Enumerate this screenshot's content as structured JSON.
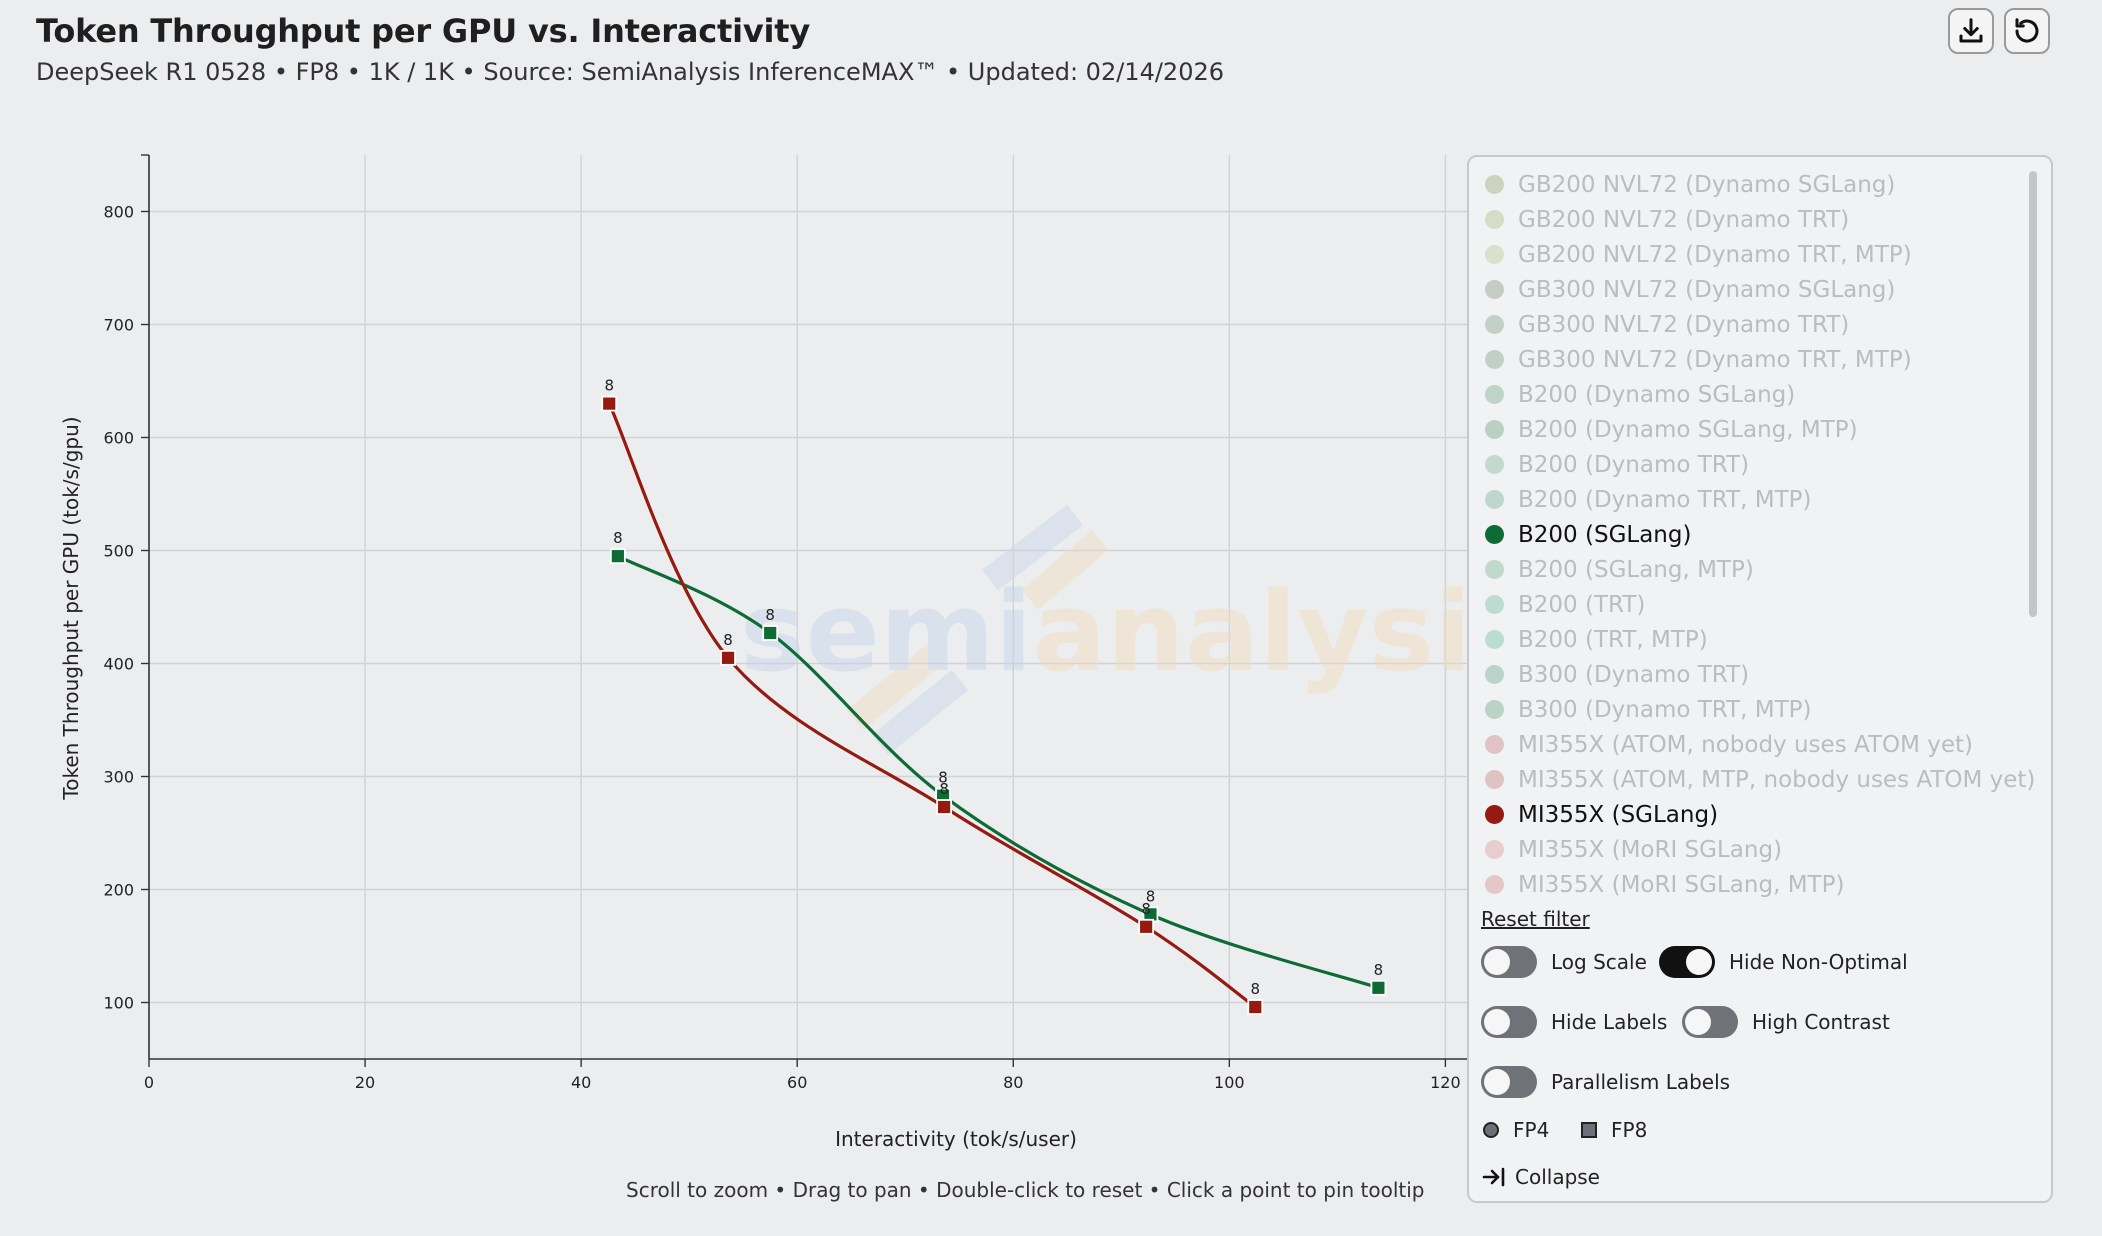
{
  "header": {
    "title": "Token Throughput per GPU vs. Interactivity",
    "subtitle": "DeepSeek R1 0528 • FP8 • 1K / 1K • Source: SemiAnalysis InferenceMAX™ • Updated: 02/14/2026"
  },
  "toolbar": {
    "download_icon": "download-icon",
    "reset_icon": "refresh-icon"
  },
  "watermark": {
    "part1": "semi",
    "part2": "analysis"
  },
  "hint": "Scroll to zoom • Drag to pan • Double-click to reset • Click a point to pin tooltip",
  "chart_data": {
    "type": "line",
    "xlabel": "Interactivity (tok/s/user)",
    "ylabel": "Token Throughput per GPU (tok/s/gpu)",
    "xlim": [
      0,
      122
    ],
    "ylim": [
      50,
      850
    ],
    "xticks": [
      "0",
      "20",
      "40",
      "60",
      "80",
      "100",
      "120"
    ],
    "yticks": [
      "100",
      "200",
      "300",
      "400",
      "500",
      "600",
      "700",
      "800"
    ],
    "grid": true,
    "legend_placement": "right",
    "series": [
      {
        "name": "B200 (SGLang)",
        "color": "#0f6b35",
        "marker": "square",
        "x": [
          43.4,
          57.5,
          73.5,
          92.7,
          113.8
        ],
        "y": [
          495,
          427,
          283,
          178,
          113
        ],
        "labels": [
          "8",
          "8",
          "8",
          "8",
          "8"
        ]
      },
      {
        "name": "MI355X (SGLang)",
        "color": "#951a10",
        "marker": "square",
        "x": [
          42.6,
          53.6,
          73.6,
          92.3,
          102.4
        ],
        "y": [
          630,
          405,
          273,
          167,
          96
        ],
        "labels": [
          "8",
          "8",
          "8",
          "8",
          "8"
        ]
      }
    ]
  },
  "legend": {
    "items": [
      {
        "label": "GB200 NVL72 (Dynamo SGLang)",
        "color": "#6b8a3a",
        "active": false
      },
      {
        "label": "GB200 NVL72 (Dynamo TRT)",
        "color": "#8aa84a",
        "active": false
      },
      {
        "label": "GB200 NVL72 (Dynamo TRT, MTP)",
        "color": "#9fb55a",
        "active": false
      },
      {
        "label": "GB300 NVL72 (Dynamo SGLang)",
        "color": "#4f6a4a",
        "active": false
      },
      {
        "label": "GB300 NVL72 (Dynamo TRT)",
        "color": "#4a7a55",
        "active": false
      },
      {
        "label": "GB300 NVL72 (Dynamo TRT, MTP)",
        "color": "#3f7a52",
        "active": false
      },
      {
        "label": "B200 (Dynamo SGLang)",
        "color": "#3a8a55",
        "active": false
      },
      {
        "label": "B200 (Dynamo SGLang, MTP)",
        "color": "#2f7a4a",
        "active": false
      },
      {
        "label": "B200 (Dynamo TRT)",
        "color": "#4a9a6a",
        "active": false
      },
      {
        "label": "B200 (Dynamo TRT, MTP)",
        "color": "#3a9060",
        "active": false
      },
      {
        "label": "B200 (SGLang)",
        "color": "#0f6b35",
        "active": true
      },
      {
        "label": "B200 (SGLang, MTP)",
        "color": "#3e9a63",
        "active": false
      },
      {
        "label": "B200 (TRT)",
        "color": "#35a070",
        "active": false
      },
      {
        "label": "B200 (TRT, MTP)",
        "color": "#30a878",
        "active": false
      },
      {
        "label": "B300 (Dynamo TRT)",
        "color": "#2a8a5a",
        "active": false
      },
      {
        "label": "B300 (Dynamo TRT, MTP)",
        "color": "#2f8050",
        "active": false
      },
      {
        "label": "MI355X (ATOM, nobody uses ATOM yet)",
        "color": "#b04a4a",
        "active": false
      },
      {
        "label": "MI355X (ATOM, MTP, nobody uses ATOM yet)",
        "color": "#a84a40",
        "active": false
      },
      {
        "label": "MI355X (SGLang)",
        "color": "#951a10",
        "active": true
      },
      {
        "label": "MI355X (MoRI SGLang)",
        "color": "#d46a6a",
        "active": false
      },
      {
        "label": "MI355X (MoRI SGLang, MTP)",
        "color": "#c85a5a",
        "active": false
      }
    ],
    "reset_filter": "Reset filter",
    "toggles": {
      "log_scale": {
        "label": "Log Scale",
        "on": false
      },
      "hide_non_optimal": {
        "label": "Hide Non-Optimal",
        "on": true
      },
      "hide_labels": {
        "label": "Hide Labels",
        "on": false
      },
      "high_contrast": {
        "label": "High Contrast",
        "on": false
      },
      "parallelism_labels": {
        "label": "Parallelism Labels",
        "on": false
      }
    },
    "markers": {
      "fp4": "FP4",
      "fp8": "FP8"
    },
    "collapse": "Collapse"
  }
}
